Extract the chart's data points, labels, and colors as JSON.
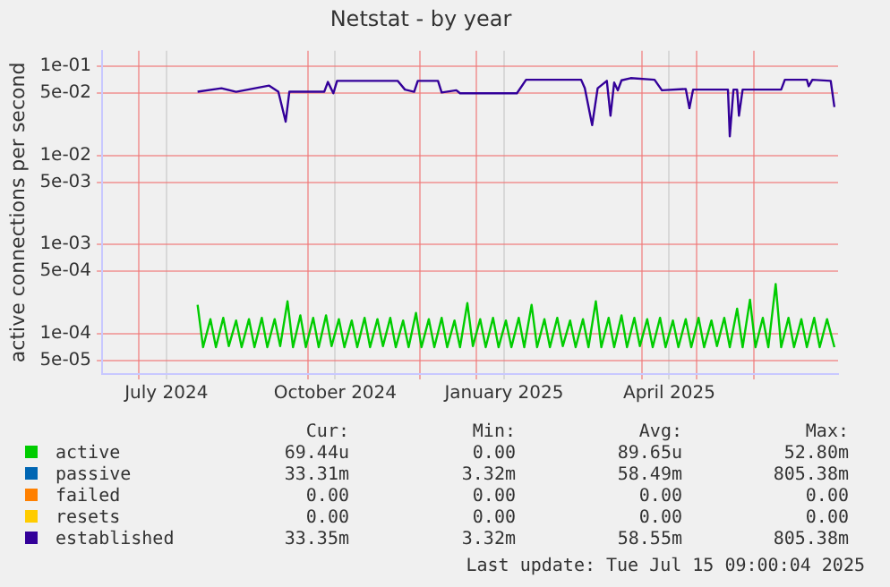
{
  "chart_data": {
    "type": "line",
    "title": "Netstat - by year",
    "ylabel": "active connections per second",
    "log": "y",
    "grid": true,
    "legend": "bottom",
    "xlim": [
      "2024-06-11",
      "2025-07-17"
    ],
    "xticks": [
      {
        "value": "2024-07-01",
        "label": null
      },
      {
        "value": "2024-07-16",
        "label": "July 2024"
      },
      {
        "value": "2024-10-01",
        "label": null
      },
      {
        "value": "2024-10-16",
        "label": "October 2024"
      },
      {
        "value": "2024-12-01",
        "label": null
      },
      {
        "value": "2025-01-01",
        "label": null
      },
      {
        "value": "2025-01-16",
        "label": "January 2025"
      },
      {
        "value": "2025-04-01",
        "label": null
      },
      {
        "value": "2025-04-16",
        "label": "April 2025"
      },
      {
        "value": "2025-05-01",
        "label": null
      },
      {
        "value": "2025-06-01",
        "label": null
      }
    ],
    "ylim": [
      3.5e-05,
      0.15
    ],
    "yticks": [
      {
        "value": 0.1,
        "label": "1e-01"
      },
      {
        "value": 0.05,
        "label": "5e-02"
      },
      {
        "value": 0.01,
        "label": "1e-02"
      },
      {
        "value": 0.005,
        "label": "5e-03"
      },
      {
        "value": 0.001,
        "label": "1e-03"
      },
      {
        "value": 0.0005,
        "label": "5e-04"
      },
      {
        "value": 0.0001,
        "label": "1e-04"
      },
      {
        "value": 5e-05,
        "label": "5e-05"
      }
    ],
    "annotations": [
      "Cur:",
      "Min:",
      "Avg:",
      "Max:",
      "69.44u",
      "0.00",
      "89.65u",
      "52.80m",
      "33.31m",
      "3.32m",
      "58.49m",
      "805.38m",
      "0.00",
      "0.00",
      "0.00",
      "0.00",
      "0.00",
      "0.00",
      "0.00",
      "0.00",
      "33.35m",
      "3.32m",
      "58.55m",
      "805.38m",
      "Last update: Tue Jul 15 09:00:04 2025"
    ],
    "series": [
      {
        "name": "active",
        "color": "#00cc00",
        "x": [
          "2024-08-02",
          "2024-08-05",
          "2024-08-09",
          "2024-08-12",
          "2024-08-16",
          "2024-08-19",
          "2024-08-23",
          "2024-08-26",
          "2024-08-30",
          "2024-09-02",
          "2024-09-06",
          "2024-09-09",
          "2024-09-13",
          "2024-09-16",
          "2024-09-20",
          "2024-09-23",
          "2024-09-27",
          "2024-09-30",
          "2024-10-04",
          "2024-10-07",
          "2024-10-11",
          "2024-10-14",
          "2024-10-18",
          "2024-10-21",
          "2024-10-25",
          "2024-10-28",
          "2024-11-01",
          "2024-11-04",
          "2024-11-08",
          "2024-11-11",
          "2024-11-15",
          "2024-11-18",
          "2024-11-22",
          "2024-11-25",
          "2024-11-29",
          "2024-12-02",
          "2024-12-06",
          "2024-12-09",
          "2024-12-13",
          "2024-12-16",
          "2024-12-20",
          "2024-12-23",
          "2024-12-27",
          "2024-12-30",
          "2025-01-03",
          "2025-01-06",
          "2025-01-10",
          "2025-01-13",
          "2025-01-17",
          "2025-01-20",
          "2025-01-24",
          "2025-01-27",
          "2025-01-31",
          "2025-02-03",
          "2025-02-07",
          "2025-02-10",
          "2025-02-14",
          "2025-02-17",
          "2025-02-21",
          "2025-02-24",
          "2025-02-28",
          "2025-03-03",
          "2025-03-07",
          "2025-03-10",
          "2025-03-14",
          "2025-03-17",
          "2025-03-21",
          "2025-03-24",
          "2025-03-28",
          "2025-03-31",
          "2025-04-04",
          "2025-04-07",
          "2025-04-11",
          "2025-04-14",
          "2025-04-18",
          "2025-04-21",
          "2025-04-25",
          "2025-04-28",
          "2025-05-02",
          "2025-05-05",
          "2025-05-09",
          "2025-05-12",
          "2025-05-16",
          "2025-05-19",
          "2025-05-23",
          "2025-05-26",
          "2025-05-30",
          "2025-06-02",
          "2025-06-06",
          "2025-06-09",
          "2025-06-13",
          "2025-06-16",
          "2025-06-20",
          "2025-06-23",
          "2025-06-27",
          "2025-06-30",
          "2025-07-04",
          "2025-07-07",
          "2025-07-11",
          "2025-07-15"
        ],
        "values": [
          0.00021,
          7e-05,
          0.000145,
          7e-05,
          0.00015,
          7.2e-05,
          0.00014,
          7e-05,
          0.000145,
          7e-05,
          0.00015,
          7e-05,
          0.000145,
          7.2e-05,
          0.00023,
          7e-05,
          0.00016,
          7e-05,
          0.00015,
          7e-05,
          0.00016,
          7.2e-05,
          0.000145,
          7e-05,
          0.00014,
          7e-05,
          0.00015,
          7e-05,
          0.000145,
          7.2e-05,
          0.00015,
          7e-05,
          0.00014,
          7e-05,
          0.00017,
          7e-05,
          0.000145,
          7e-05,
          0.00015,
          7e-05,
          0.00014,
          7e-05,
          0.00022,
          7.2e-05,
          0.000145,
          7e-05,
          0.00015,
          7e-05,
          0.00014,
          7e-05,
          0.00015,
          7e-05,
          0.00021,
          7e-05,
          0.000145,
          7e-05,
          0.00015,
          7.2e-05,
          0.00014,
          7e-05,
          0.000145,
          7e-05,
          0.00023,
          7e-05,
          0.00015,
          7e-05,
          0.00016,
          7e-05,
          0.00015,
          7.2e-05,
          0.000145,
          7e-05,
          0.00015,
          7e-05,
          0.00014,
          7e-05,
          0.000145,
          7e-05,
          0.00015,
          7e-05,
          0.00014,
          7.2e-05,
          0.00015,
          7e-05,
          0.00019,
          7e-05,
          0.00024,
          7e-05,
          0.00015,
          7e-05,
          0.00036,
          7e-05,
          0.00015,
          7e-05,
          0.000145,
          7e-05,
          0.00015,
          7e-05,
          0.000145,
          7e-05
        ]
      },
      {
        "name": "passive",
        "color": "#0066b3"
      },
      {
        "name": "failed",
        "color": "#ff8000"
      },
      {
        "name": "resets",
        "color": "#ffcc00"
      },
      {
        "name": "established",
        "color": "#330099",
        "x": [
          "2024-08-02",
          "2024-08-15",
          "2024-08-23",
          "2024-09-10",
          "2024-09-15",
          "2024-09-19",
          "2024-09-21",
          "2024-10-10",
          "2024-10-12",
          "2024-10-15",
          "2024-10-17",
          "2024-11-19",
          "2024-11-23",
          "2024-11-28",
          "2024-11-30",
          "2024-12-11",
          "2024-12-13",
          "2024-12-21",
          "2024-12-23",
          "2025-01-23",
          "2025-01-28",
          "2025-02-27",
          "2025-03-01",
          "2025-03-05",
          "2025-03-08",
          "2025-03-13",
          "2025-03-15",
          "2025-03-17",
          "2025-03-19",
          "2025-03-21",
          "2025-03-26",
          "2025-04-08",
          "2025-04-12",
          "2025-04-25",
          "2025-04-27",
          "2025-04-29",
          "2025-05-18",
          "2025-05-19",
          "2025-05-21",
          "2025-05-23",
          "2025-05-24",
          "2025-05-26",
          "2025-06-16",
          "2025-06-18",
          "2025-06-30",
          "2025-07-01",
          "2025-07-03",
          "2025-07-13",
          "2025-07-15"
        ],
        "values": [
          0.052,
          0.057,
          0.052,
          0.061,
          0.052,
          0.024,
          0.052,
          0.052,
          0.067,
          0.05,
          0.069,
          0.069,
          0.055,
          0.052,
          0.069,
          0.069,
          0.051,
          0.054,
          0.05,
          0.05,
          0.071,
          0.071,
          0.057,
          0.022,
          0.057,
          0.069,
          0.028,
          0.066,
          0.054,
          0.07,
          0.074,
          0.071,
          0.054,
          0.056,
          0.034,
          0.055,
          0.055,
          0.0164,
          0.055,
          0.055,
          0.028,
          0.055,
          0.055,
          0.071,
          0.071,
          0.06,
          0.071,
          0.069,
          0.035
        ]
      }
    ]
  }
}
